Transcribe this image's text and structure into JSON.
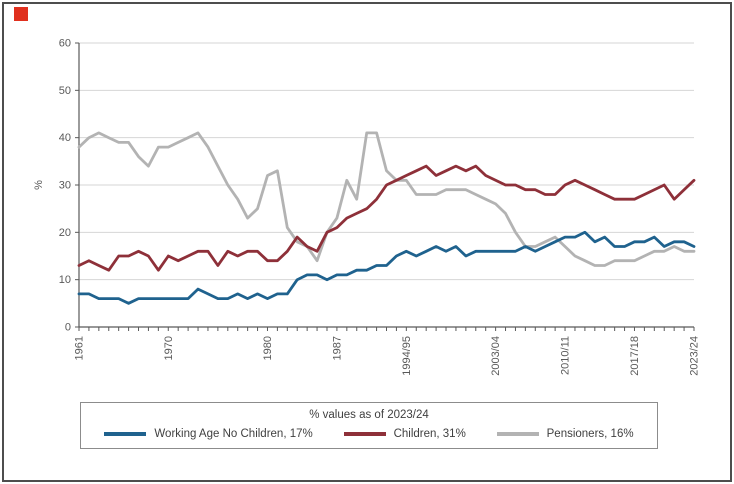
{
  "logo": {
    "color": "#e0301e"
  },
  "frame": {
    "border_color": "#4d4d4d"
  },
  "chart_data": {
    "type": "line",
    "title": "",
    "xlabel": "",
    "ylabel": "%",
    "ylim": [
      0,
      60
    ],
    "yticks": [
      0,
      10,
      20,
      30,
      40,
      50,
      60
    ],
    "grid": "horizontal",
    "x_start_year": 1961,
    "x_end_label": "2023/24",
    "x_tick_labels": [
      {
        "label": "1961",
        "index": 0
      },
      {
        "label": "1970",
        "index": 9
      },
      {
        "label": "1980",
        "index": 19
      },
      {
        "label": "1987",
        "index": 26
      },
      {
        "label": "1994/95",
        "index": 33
      },
      {
        "label": "2003/04",
        "index": 42
      },
      {
        "label": "2010/11",
        "index": 49
      },
      {
        "label": "2017/18",
        "index": 56
      },
      {
        "label": "2023/24",
        "index": 62
      }
    ],
    "series": [
      {
        "name": "Working Age No Children",
        "final_value": "17%",
        "color": "#1f628e",
        "values": [
          7,
          7,
          6,
          6,
          6,
          5,
          6,
          6,
          6,
          6,
          6,
          6,
          8,
          7,
          6,
          6,
          7,
          6,
          7,
          6,
          7,
          7,
          10,
          11,
          11,
          10,
          11,
          11,
          12,
          12,
          13,
          13,
          15,
          16,
          15,
          16,
          17,
          16,
          17,
          15,
          16,
          16,
          16,
          16,
          16,
          17,
          16,
          17,
          18,
          19,
          19,
          20,
          18,
          19,
          17,
          17,
          18,
          18,
          19,
          17,
          18,
          18,
          17
        ]
      },
      {
        "name": "Children",
        "final_value": "31%",
        "color": "#8e3039",
        "values": [
          13,
          14,
          13,
          12,
          15,
          15,
          16,
          15,
          12,
          15,
          14,
          15,
          16,
          16,
          13,
          16,
          15,
          16,
          16,
          14,
          14,
          16,
          19,
          17,
          16,
          20,
          21,
          23,
          24,
          25,
          27,
          30,
          31,
          32,
          33,
          34,
          32,
          33,
          34,
          33,
          34,
          32,
          31,
          30,
          30,
          29,
          29,
          28,
          28,
          30,
          31,
          30,
          29,
          28,
          27,
          27,
          27,
          28,
          29,
          30,
          27,
          29,
          31
        ]
      },
      {
        "name": "Pensioners",
        "final_value": "16%",
        "color": "#b3b3b3",
        "values": [
          38,
          40,
          41,
          40,
          39,
          39,
          36,
          34,
          38,
          38,
          39,
          40,
          41,
          38,
          34,
          30,
          27,
          23,
          25,
          32,
          33,
          21,
          18,
          17,
          14,
          20,
          23,
          31,
          27,
          41,
          41,
          33,
          31,
          31,
          28,
          28,
          28,
          29,
          29,
          29,
          28,
          27,
          26,
          24,
          20,
          17,
          17,
          18,
          19,
          17,
          15,
          14,
          13,
          13,
          14,
          14,
          14,
          15,
          16,
          16,
          17,
          16,
          16
        ]
      }
    ],
    "axis_color": "#595959",
    "gridline_color": "#d6d6d6",
    "tick_label_color": "#595959"
  },
  "legend": {
    "title": "% values as of 2023/24",
    "entries": [
      {
        "label": "Working Age No Children, 17%",
        "color": "#1f628e"
      },
      {
        "label": "Children, 31%",
        "color": "#8e3039"
      },
      {
        "label": "Pensioners, 16%",
        "color": "#b3b3b3"
      }
    ]
  }
}
